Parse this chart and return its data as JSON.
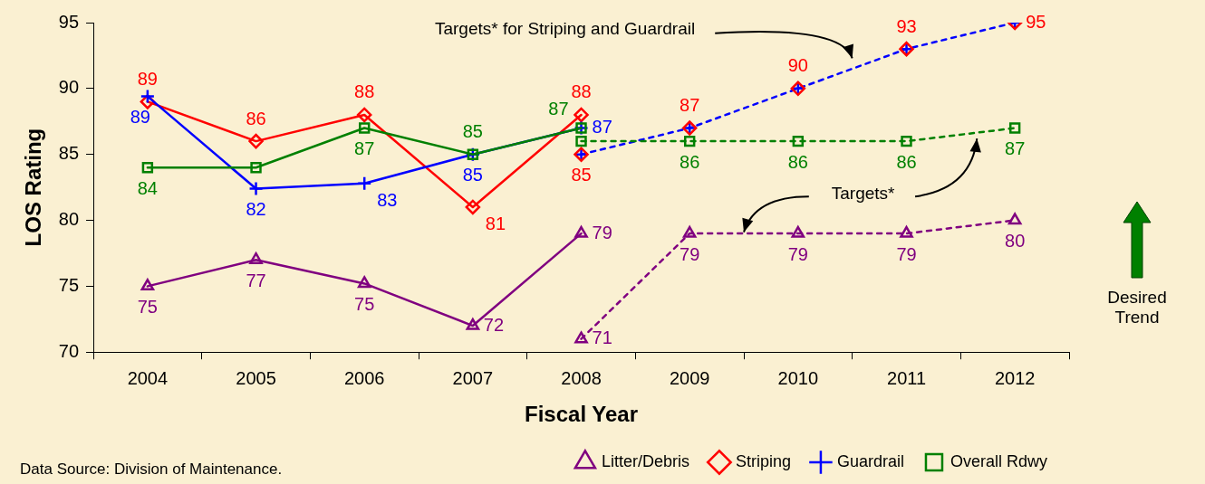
{
  "chart_data": {
    "type": "line",
    "xlabel": "Fiscal Year",
    "ylabel": "LOS Rating",
    "categories": [
      "2004",
      "2005",
      "2006",
      "2007",
      "2008",
      "2009",
      "2010",
      "2011",
      "2012"
    ],
    "ylim": [
      70,
      95
    ],
    "yticks": [
      70,
      75,
      80,
      85,
      90,
      95
    ],
    "grid": false,
    "legend": "bottom right",
    "series": [
      {
        "name": "Litter/Debris",
        "color": "#800080",
        "marker": "triangle",
        "line_style": "solid",
        "values": [
          75,
          77,
          75.2,
          72,
          79,
          null,
          null,
          null,
          null
        ],
        "value_labels": [
          "75",
          "77",
          "75",
          "72",
          "79",
          null,
          null,
          null,
          null
        ]
      },
      {
        "name": "Striping",
        "color": "#ff0000",
        "marker": "diamond",
        "line_style": "solid",
        "values": [
          89,
          86,
          88,
          81,
          88,
          null,
          null,
          null,
          null
        ],
        "value_labels": [
          "89",
          "86",
          "88",
          "81",
          "88",
          null,
          null,
          null,
          null
        ]
      },
      {
        "name": "Guardrail",
        "color": "#0000ff",
        "marker": "cross",
        "line_style": "solid",
        "values": [
          89.4,
          82.4,
          82.8,
          85,
          87,
          null,
          null,
          null,
          null
        ],
        "value_labels": [
          "89",
          "82",
          "83",
          "85",
          "87",
          null,
          null,
          null,
          null
        ]
      },
      {
        "name": "Overall Rdwy",
        "color": "#008000",
        "marker": "square",
        "line_style": "solid",
        "values": [
          84,
          84,
          87,
          85,
          87,
          null,
          null,
          null,
          null
        ],
        "value_labels": [
          "84",
          null,
          "87",
          "85",
          "87",
          null,
          null,
          null,
          null
        ]
      },
      {
        "color": "#800080",
        "marker": "triangle",
        "line_style": "dotted",
        "values": [
          null,
          null,
          null,
          null,
          71,
          79,
          79,
          79,
          80
        ],
        "value_labels": [
          null,
          null,
          null,
          null,
          "71",
          "79",
          "79",
          "79",
          "80"
        ]
      },
      {
        "color": "#0000ff",
        "marker": "cross",
        "line_style": "dotted",
        "values": [
          null,
          null,
          null,
          null,
          85,
          87,
          90,
          93,
          95
        ]
      },
      {
        "type": "scatter",
        "color": "#ff0000",
        "marker": "diamond",
        "values": [
          null,
          null,
          null,
          null,
          85,
          87,
          90,
          93,
          95
        ],
        "value_labels": [
          null,
          null,
          null,
          null,
          "85",
          "87",
          "90",
          "93",
          "95"
        ]
      },
      {
        "color": "#008000",
        "marker": "square",
        "line_style": "dotted",
        "values": [
          null,
          null,
          null,
          null,
          86,
          86,
          86,
          86,
          87
        ],
        "value_labels": [
          null,
          null,
          null,
          null,
          null,
          "86",
          "86",
          "86",
          "87"
        ]
      }
    ],
    "annotations": [
      "Targets* for Striping and Guardrail",
      "Targets*",
      "Desired Trend",
      "Data Source: Division of Maintenance."
    ]
  }
}
